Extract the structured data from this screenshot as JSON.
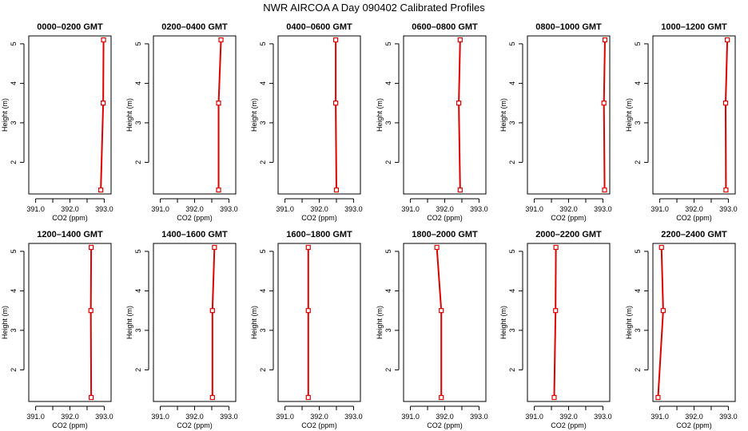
{
  "figure": {
    "title": "NWR AIRCOA A  Day 090402  Calibrated Profiles"
  },
  "colors": {
    "profile": "#e00000",
    "axes": "#000000",
    "background": "#ffffff"
  },
  "chart_data": [
    {
      "type": "line",
      "title": "0000–0200 GMT",
      "xlabel": "CO2 (ppm)",
      "ylabel": "Height (m)",
      "xlim": [
        390.8,
        393.2
      ],
      "ylim": [
        1.2,
        5.2
      ],
      "xticks": [
        "391.0",
        "392.0",
        "393.0"
      ],
      "yticks": [
        "2",
        "3",
        "4",
        "5"
      ],
      "series": [
        {
          "x": [
            392.9,
            392.97,
            392.98
          ],
          "y": [
            1.3,
            3.5,
            5.1
          ]
        }
      ]
    },
    {
      "type": "line",
      "title": "0200–0400 GMT",
      "xlabel": "CO2 (ppm)",
      "ylabel": "Height (m)",
      "xlim": [
        390.8,
        393.2
      ],
      "ylim": [
        1.2,
        5.2
      ],
      "xticks": [
        "391.0",
        "392.0",
        "393.0"
      ],
      "yticks": [
        "2",
        "3",
        "4",
        "5"
      ],
      "series": [
        {
          "x": [
            392.7,
            392.7,
            392.77
          ],
          "y": [
            1.3,
            3.5,
            5.1
          ]
        }
      ]
    },
    {
      "type": "line",
      "title": "0400–0600 GMT",
      "xlabel": "CO2 (ppm)",
      "ylabel": "Height (m)",
      "xlim": [
        390.8,
        393.2
      ],
      "ylim": [
        1.2,
        5.2
      ],
      "xticks": [
        "391.0",
        "392.0",
        "393.0"
      ],
      "yticks": [
        "2",
        "3",
        "4",
        "5"
      ],
      "series": [
        {
          "x": [
            392.5,
            392.48,
            392.48
          ],
          "y": [
            1.3,
            3.5,
            5.1
          ]
        }
      ]
    },
    {
      "type": "line",
      "title": "0600–0800 GMT",
      "xlabel": "CO2 (ppm)",
      "ylabel": "Height (m)",
      "xlim": [
        390.8,
        393.2
      ],
      "ylim": [
        1.2,
        5.2
      ],
      "xticks": [
        "391.0",
        "392.0",
        "393.0"
      ],
      "yticks": [
        "2",
        "3",
        "4",
        "5"
      ],
      "series": [
        {
          "x": [
            392.45,
            392.41,
            392.45
          ],
          "y": [
            1.3,
            3.5,
            5.1
          ]
        }
      ]
    },
    {
      "type": "line",
      "title": "0800–1000 GMT",
      "xlabel": "CO2 (ppm)",
      "ylabel": "Height (m)",
      "xlim": [
        390.8,
        393.2
      ],
      "ylim": [
        1.2,
        5.2
      ],
      "xticks": [
        "391.0",
        "392.0",
        "393.0"
      ],
      "yticks": [
        "2",
        "3",
        "4",
        "5"
      ],
      "series": [
        {
          "x": [
            393.05,
            393.03,
            393.06
          ],
          "y": [
            1.3,
            3.5,
            5.1
          ]
        }
      ]
    },
    {
      "type": "line",
      "title": "1000–1200 GMT",
      "xlabel": "CO2 (ppm)",
      "ylabel": "Height (m)",
      "xlim": [
        390.8,
        393.2
      ],
      "ylim": [
        1.2,
        5.2
      ],
      "xticks": [
        "391.0",
        "392.0",
        "393.0"
      ],
      "yticks": [
        "2",
        "3",
        "4",
        "5"
      ],
      "series": [
        {
          "x": [
            392.93,
            392.92,
            392.97
          ],
          "y": [
            1.3,
            3.5,
            5.1
          ]
        }
      ]
    },
    {
      "type": "line",
      "title": "1200–1400 GMT",
      "xlabel": "CO2 (ppm)",
      "ylabel": "Height (m)",
      "xlim": [
        390.8,
        393.2
      ],
      "ylim": [
        1.2,
        5.2
      ],
      "xticks": [
        "391.0",
        "392.0",
        "393.0"
      ],
      "yticks": [
        "2",
        "3",
        "4",
        "5"
      ],
      "series": [
        {
          "x": [
            392.62,
            392.61,
            392.62
          ],
          "y": [
            1.3,
            3.5,
            5.1
          ]
        }
      ]
    },
    {
      "type": "line",
      "title": "1400–1600 GMT",
      "xlabel": "CO2 (ppm)",
      "ylabel": "Height (m)",
      "xlim": [
        390.8,
        393.2
      ],
      "ylim": [
        1.2,
        5.2
      ],
      "xticks": [
        "391.0",
        "392.0",
        "393.0"
      ],
      "yticks": [
        "2",
        "3",
        "4",
        "5"
      ],
      "series": [
        {
          "x": [
            392.52,
            392.52,
            392.58
          ],
          "y": [
            1.3,
            3.5,
            5.1
          ]
        }
      ]
    },
    {
      "type": "line",
      "title": "1600–1800 GMT",
      "xlabel": "CO2 (ppm)",
      "ylabel": "Height (m)",
      "xlim": [
        390.8,
        393.2
      ],
      "ylim": [
        1.2,
        5.2
      ],
      "xticks": [
        "391.0",
        "392.0",
        "393.0"
      ],
      "yticks": [
        "2",
        "3",
        "4",
        "5"
      ],
      "series": [
        {
          "x": [
            391.68,
            391.68,
            391.68
          ],
          "y": [
            1.3,
            3.5,
            5.1
          ]
        }
      ]
    },
    {
      "type": "line",
      "title": "1800–2000 GMT",
      "xlabel": "CO2 (ppm)",
      "ylabel": "Height (m)",
      "xlim": [
        390.8,
        393.2
      ],
      "ylim": [
        1.2,
        5.2
      ],
      "xticks": [
        "391.0",
        "392.0",
        "393.0"
      ],
      "yticks": [
        "2",
        "3",
        "4",
        "5"
      ],
      "series": [
        {
          "x": [
            391.9,
            391.9,
            391.77
          ],
          "y": [
            1.3,
            3.5,
            5.1
          ]
        }
      ]
    },
    {
      "type": "line",
      "title": "2000–2200 GMT",
      "xlabel": "CO2 (ppm)",
      "ylabel": "Height (m)",
      "xlim": [
        390.8,
        393.2
      ],
      "ylim": [
        1.2,
        5.2
      ],
      "xticks": [
        "391.0",
        "392.0",
        "393.0"
      ],
      "yticks": [
        "2",
        "3",
        "4",
        "5"
      ],
      "series": [
        {
          "x": [
            391.58,
            391.62,
            391.63
          ],
          "y": [
            1.3,
            3.5,
            5.1
          ]
        }
      ]
    },
    {
      "type": "line",
      "title": "2200–2400 GMT",
      "xlabel": "CO2 (ppm)",
      "ylabel": "Height (m)",
      "xlim": [
        390.8,
        393.2
      ],
      "ylim": [
        1.2,
        5.2
      ],
      "xticks": [
        "391.0",
        "392.0",
        "393.0"
      ],
      "yticks": [
        "2",
        "3",
        "4",
        "5"
      ],
      "series": [
        {
          "x": [
            390.95,
            391.1,
            391.05
          ],
          "y": [
            1.3,
            3.5,
            5.1
          ]
        }
      ]
    }
  ]
}
